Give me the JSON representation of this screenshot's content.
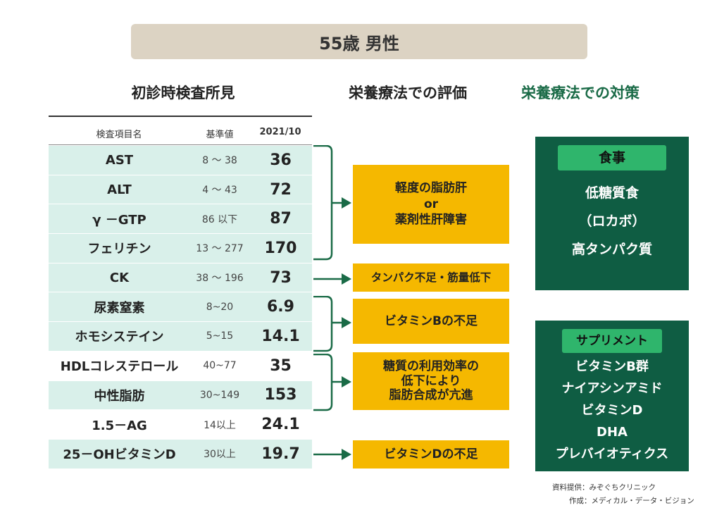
{
  "title": "55歳 男性",
  "sections": {
    "left": "初診時検査所見",
    "middle": "栄養療法での評価",
    "right": "栄養療法での対策"
  },
  "table": {
    "headers": [
      "検査項目名",
      "基準値",
      "2021/10"
    ],
    "rows": [
      {
        "name": "AST",
        "ref": "8 ～ 38",
        "value": "36"
      },
      {
        "name": "ALT",
        "ref": "4 ～ 43",
        "value": "72"
      },
      {
        "name": "γ －GTP",
        "ref": "86 以下",
        "value": "87"
      },
      {
        "name": "フェリチン",
        "ref": "13 ～ 277",
        "value": "170"
      },
      {
        "name": "CK",
        "ref": "38 ～ 196",
        "value": "73"
      },
      {
        "name": "尿素窒素",
        "ref": "8~20",
        "value": "6.9"
      },
      {
        "name": "ホモシステイン",
        "ref": "5~15",
        "value": "14.1"
      },
      {
        "name": "HDLコレステロール",
        "ref": "40~77",
        "value": "35"
      },
      {
        "name": "中性脂肪",
        "ref": "30~149",
        "value": "153"
      },
      {
        "name": "1.5－AG",
        "ref": "14以上",
        "value": "24.1"
      },
      {
        "name": "25－OHビタミンD",
        "ref": "30以上",
        "value": "19.7"
      }
    ]
  },
  "evaluations": [
    {
      "lines": [
        "軽度の脂肪肝",
        "or",
        "薬剤性肝障害"
      ]
    },
    {
      "lines": [
        "タンパク不足・筋量低下"
      ]
    },
    {
      "lines": [
        "ビタミンBの不足"
      ]
    },
    {
      "lines": [
        "糖質の利用効率の",
        "低下により",
        "脂肪合成が亢進"
      ]
    },
    {
      "lines": [
        "ビタミンDの不足"
      ]
    }
  ],
  "measures": {
    "diet": {
      "label": "食事",
      "items": [
        "低糖質食",
        "（ロカボ）",
        "高タンパク質"
      ]
    },
    "supplement": {
      "label": "サプリメント",
      "items": [
        "ビタミンB群",
        "ナイアシンアミド",
        "ビタミンD",
        "DHA",
        "プレバイオティクス"
      ]
    }
  },
  "credits": [
    "資料提供：みぞぐちクリニック",
    "作成：メディカル・データ・ビジョン"
  ],
  "colors": {
    "title_bg": "#dcd3c3",
    "row_shade": "#d9f0ea",
    "eval_box": "#f5b800",
    "measure_box": "#0f5d43",
    "measure_label": "#2fb56c",
    "arrow": "#1a6b47"
  }
}
